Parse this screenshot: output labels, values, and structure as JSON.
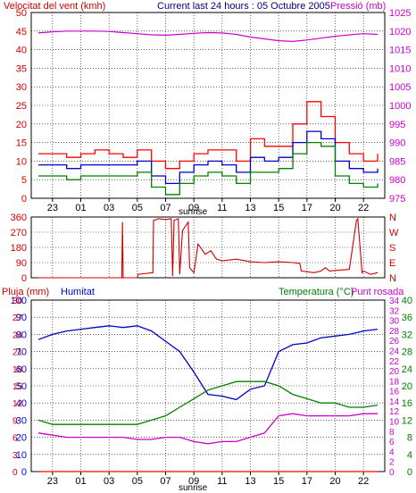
{
  "title_line": "Current last 24 hours : 05 Octubre 2005",
  "colors": {
    "red": "#ff0000",
    "blue": "#0000cc",
    "green": "#008000",
    "magenta": "#cc00cc",
    "dark_red": "#cc0000",
    "grid": "#000000",
    "background": "#ffffff"
  },
  "x_ticks": [
    "23",
    "01",
    "03",
    "05",
    "07",
    "09",
    "11",
    "13",
    "15",
    "17",
    "20",
    "22"
  ],
  "sunrise_label": "sunrise",
  "chart_data": [
    {
      "type": "line",
      "left_axis_label": "Velocitat del vent (kmh)",
      "right_axis_label": "Pressió (mb)",
      "left_ticks": [
        "0",
        "5",
        "10",
        "15",
        "20",
        "25",
        "30",
        "35",
        "40",
        "45",
        "50"
      ],
      "right_ticks": [
        "975",
        "980",
        "985",
        "990",
        "995",
        "1000",
        "1005",
        "1010",
        "1015",
        "1020",
        "1025"
      ],
      "ylim_left": [
        0,
        50
      ],
      "ylim_right": [
        975,
        1025
      ],
      "series": [
        {
          "id": "gust",
          "color": "#ff0000",
          "axis": "left",
          "x": [
            0,
            1,
            2,
            3,
            4,
            5,
            6,
            7,
            8,
            9,
            10,
            11,
            12,
            13,
            14,
            15,
            16,
            17,
            18,
            19,
            20,
            21,
            22,
            23,
            24
          ],
          "values": [
            12,
            12,
            11,
            12,
            13,
            12,
            11,
            13,
            10,
            8,
            10,
            12,
            13,
            13,
            10,
            16,
            14,
            14,
            20,
            26,
            22,
            15,
            12,
            10,
            12
          ]
        },
        {
          "id": "average_wind",
          "color": "#0000cc",
          "axis": "left",
          "x": [
            0,
            1,
            2,
            3,
            4,
            5,
            6,
            7,
            8,
            9,
            10,
            11,
            12,
            13,
            14,
            15,
            16,
            17,
            18,
            19,
            20,
            21,
            22,
            23,
            24
          ],
          "values": [
            9,
            9,
            8,
            9,
            9,
            9,
            9,
            10,
            6,
            4,
            7,
            9,
            10,
            9,
            7,
            11,
            10,
            11,
            15,
            18,
            16,
            10,
            8,
            7,
            8
          ]
        },
        {
          "id": "minimum_wind",
          "color": "#008000",
          "axis": "left",
          "x": [
            0,
            1,
            2,
            3,
            4,
            5,
            6,
            7,
            8,
            9,
            10,
            11,
            12,
            13,
            14,
            15,
            16,
            17,
            18,
            19,
            20,
            21,
            22,
            23,
            24
          ],
          "values": [
            6,
            6,
            5,
            6,
            6,
            6,
            6,
            7,
            3,
            1,
            4,
            6,
            7,
            6,
            4,
            7,
            7,
            8,
            12,
            15,
            14,
            6,
            4,
            3,
            4
          ]
        },
        {
          "id": "pressure",
          "color": "#cc00cc",
          "axis": "right",
          "x": [
            0,
            1,
            2,
            3,
            4,
            5,
            6,
            7,
            8,
            9,
            10,
            11,
            12,
            13,
            14,
            15,
            16,
            17,
            18,
            19,
            20,
            21,
            22,
            23,
            24
          ],
          "values": [
            1019.5,
            1019.8,
            1020,
            1020,
            1020,
            1019.9,
            1019.6,
            1019.3,
            1019,
            1018.9,
            1019.1,
            1019.4,
            1019.6,
            1019.5,
            1019.1,
            1018.4,
            1017.9,
            1017.4,
            1017.2,
            1017.6,
            1018.1,
            1018.6,
            1019,
            1019.3,
            1019.1
          ]
        }
      ]
    },
    {
      "type": "line",
      "right_axis_label": "N W S E N",
      "left_ticks": [
        "0",
        "90",
        "180",
        "270",
        "360"
      ],
      "right_ticks": [
        "N",
        "E",
        "S",
        "W",
        "N"
      ],
      "ylim": [
        0,
        360
      ],
      "series": [
        {
          "id": "wind_direction",
          "color": "#cc0000",
          "x": [
            0,
            5.9,
            5.95,
            6.0,
            7.0,
            7.05,
            8.1,
            8.15,
            8.5,
            9.0,
            9.4,
            9.5,
            9.6,
            9.9,
            10.0,
            10.2,
            10.6,
            10.7,
            11.0,
            11.3,
            11.8,
            12.2,
            12.6,
            13.0,
            14.0,
            15.0,
            16.0,
            17.0,
            18.0,
            18.5,
            18.6,
            19.5,
            20.0,
            20.3,
            20.6,
            22.0,
            22.5,
            22.6,
            22.9,
            23.0,
            23.5,
            24.0
          ],
          "values": [
            0,
            0,
            330,
            0,
            0,
            20,
            30,
            340,
            350,
            345,
            350,
            10,
            340,
            350,
            20,
            280,
            330,
            60,
            30,
            200,
            140,
            160,
            110,
            100,
            110,
            95,
            90,
            95,
            90,
            85,
            40,
            30,
            40,
            60,
            40,
            50,
            340,
            350,
            30,
            40,
            20,
            30
          ]
        }
      ]
    },
    {
      "type": "line",
      "left_axis_label": "Pluja (mm)",
      "left2_axis_label": "Humitat",
      "right_axis_label": "Temperatura (°C)",
      "right2_axis_label": "Punt rosada",
      "left_ticks": [
        "0",
        "10",
        "20",
        "30",
        "40",
        "50",
        "60",
        "70",
        "80",
        "90",
        "100"
      ],
      "left2_ticks": [
        "0",
        "3",
        "6",
        "9",
        "12",
        "15",
        "18",
        "21",
        "24",
        "27",
        "30"
      ],
      "right_ticks": [
        "0",
        "4",
        "8",
        "12",
        "16",
        "20",
        "24",
        "28",
        "32",
        "36",
        "40"
      ],
      "right2_ticks": [
        "0",
        "2",
        "4",
        "6",
        "8",
        "10",
        "12",
        "14",
        "16",
        "18",
        "20",
        "22",
        "24",
        "26",
        "28",
        "30",
        "32",
        "34"
      ],
      "ylim_humidity": [
        0,
        100
      ],
      "ylim_temperature": [
        0,
        40
      ],
      "series": [
        {
          "id": "humidity",
          "color": "#0000cc",
          "axis": "humidity",
          "x": [
            0,
            1,
            2,
            3,
            4,
            5,
            6,
            7,
            8,
            9,
            10,
            11,
            12,
            13,
            14,
            15,
            16,
            17,
            18,
            19,
            20,
            21,
            22,
            23,
            24
          ],
          "values": [
            77,
            80,
            82,
            83,
            84,
            85,
            84,
            85,
            82,
            76,
            70,
            58,
            45,
            44,
            42,
            48,
            50,
            70,
            74,
            75,
            78,
            79,
            80,
            82,
            83
          ]
        },
        {
          "id": "rain",
          "color": "#ff0000",
          "axis": "humidity",
          "x": [
            0,
            24
          ],
          "values": [
            0,
            0
          ]
        },
        {
          "id": "temperature",
          "color": "#008000",
          "axis": "temperature",
          "x": [
            0,
            1,
            2,
            3,
            4,
            5,
            6,
            7,
            8,
            9,
            10,
            11,
            12,
            13,
            14,
            15,
            16,
            17,
            18,
            19,
            20,
            21,
            22,
            23,
            24
          ],
          "values": [
            12,
            11,
            11,
            11,
            11,
            11,
            11,
            11,
            12,
            13,
            15,
            17,
            19,
            20,
            21,
            21,
            21,
            20,
            18,
            17,
            16,
            16,
            15,
            15,
            15.5
          ]
        },
        {
          "id": "dew_point",
          "color": "#cc00cc",
          "axis": "temperature",
          "x": [
            0,
            1,
            2,
            3,
            4,
            5,
            6,
            7,
            8,
            9,
            10,
            11,
            12,
            13,
            14,
            15,
            16,
            17,
            18,
            19,
            20,
            21,
            22,
            23,
            24
          ],
          "values": [
            9,
            8.5,
            8,
            8,
            8,
            8,
            8,
            7.5,
            7.5,
            8,
            8,
            7,
            6.5,
            7,
            7,
            8,
            9,
            13,
            13.5,
            13,
            13,
            13,
            13,
            13.5,
            13.5
          ]
        }
      ]
    }
  ]
}
